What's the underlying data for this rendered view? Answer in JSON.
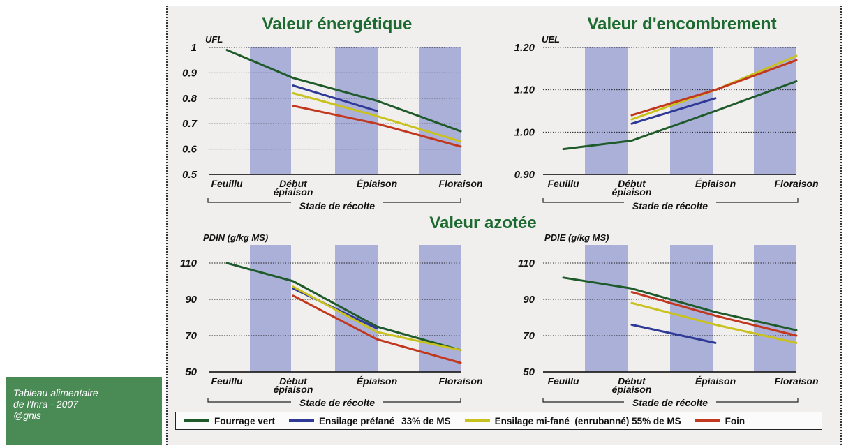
{
  "caption": {
    "lines": [
      "Tableau alimentaire",
      "de l'Inra - 2007",
      "@gnis"
    ]
  },
  "colors": {
    "fourrage_vert": "#1f5a2a",
    "ensilage_prefane": "#2f3a96",
    "ensilage_mi_fane": "#c9c21e",
    "foin": "#c2381f",
    "band": "#aab0d8",
    "title": "#1c6a30"
  },
  "section_titles": {
    "azotee": "Valeur azotée"
  },
  "legend": [
    {
      "label": "Fourrage vert",
      "extra": "",
      "color": "#1f5a2a"
    },
    {
      "label": "Ensilage préfané",
      "extra": "33% de MS",
      "color": "#2f3a96"
    },
    {
      "label": "Ensilage mi-fané  (enrubanné) 55% de MS",
      "extra": "",
      "color": "#c9c21e"
    },
    {
      "label": "Foin",
      "extra": "",
      "color": "#c2381f"
    }
  ],
  "chart_data": [
    {
      "type": "line",
      "title": "Valeur énergétique",
      "ylabel": "UFL",
      "xlabel": "Stade de récolte",
      "categories": [
        "Feuillu",
        "Début épiaison",
        "Épiaison",
        "Floraison"
      ],
      "yticks": [
        "1",
        "0.9",
        "0.8",
        "0.7",
        "0.6",
        "0.5"
      ],
      "ylim": [
        0.5,
        1.0
      ],
      "grid": true,
      "series": [
        {
          "name": "Fourrage vert",
          "color": "#1f5a2a",
          "points": [
            [
              0,
              0.99
            ],
            [
              1,
              0.88
            ],
            [
              2,
              0.79
            ],
            [
              3,
              0.67
            ]
          ]
        },
        {
          "name": "Ensilage préfané",
          "color": "#2f3a96",
          "points": [
            [
              1,
              0.85
            ],
            [
              2,
              0.75
            ]
          ]
        },
        {
          "name": "Ensilage mi-fané",
          "color": "#c9c21e",
          "points": [
            [
              1,
              0.82
            ],
            [
              2,
              0.73
            ],
            [
              3,
              0.63
            ]
          ]
        },
        {
          "name": "Foin",
          "color": "#c2381f",
          "points": [
            [
              1,
              0.77
            ],
            [
              2,
              0.7
            ],
            [
              3,
              0.61
            ]
          ]
        }
      ]
    },
    {
      "type": "line",
      "title": "Valeur d'encombrement",
      "ylabel": "UEL",
      "xlabel": "Stade de récolte",
      "categories": [
        "Feuillu",
        "Début épiaison",
        "Épiaison",
        "Floraison"
      ],
      "yticks": [
        "1.20",
        "1.10",
        "1.00",
        "0.90"
      ],
      "ylim": [
        0.9,
        1.2
      ],
      "grid": true,
      "series": [
        {
          "name": "Fourrage vert",
          "color": "#1f5a2a",
          "points": [
            [
              0,
              0.96
            ],
            [
              1,
              0.98
            ],
            [
              2,
              1.05
            ],
            [
              3,
              1.12
            ]
          ]
        },
        {
          "name": "Ensilage préfané",
          "color": "#2f3a96",
          "points": [
            [
              1,
              1.02
            ],
            [
              2,
              1.08
            ]
          ]
        },
        {
          "name": "Ensilage mi-fané",
          "color": "#c9c21e",
          "points": [
            [
              1,
              1.03
            ],
            [
              2,
              1.1
            ],
            [
              3,
              1.18
            ]
          ]
        },
        {
          "name": "Foin",
          "color": "#c2381f",
          "points": [
            [
              1,
              1.04
            ],
            [
              2,
              1.1
            ],
            [
              3,
              1.17
            ]
          ]
        }
      ]
    },
    {
      "type": "line",
      "title": "",
      "ylabel": "PDIN (g/kg MS)",
      "xlabel": "Stade de récolte",
      "categories": [
        "Feuillu",
        "Début épiaison",
        "Épiaison",
        "Floraison"
      ],
      "yticks": [
        "110",
        "90",
        "70",
        "50"
      ],
      "ylim": [
        50,
        120
      ],
      "grid": true,
      "series": [
        {
          "name": "Fourrage vert",
          "color": "#1f5a2a",
          "points": [
            [
              0,
              110
            ],
            [
              1,
              100
            ],
            [
              2,
              75
            ],
            [
              3,
              62
            ]
          ]
        },
        {
          "name": "Ensilage préfané",
          "color": "#2f3a96",
          "points": [
            [
              1,
              96
            ],
            [
              2,
              74
            ]
          ]
        },
        {
          "name": "Ensilage mi-fané",
          "color": "#c9c21e",
          "points": [
            [
              1,
              97
            ],
            [
              2,
              72
            ],
            [
              3,
              62
            ]
          ]
        },
        {
          "name": "Foin",
          "color": "#c2381f",
          "points": [
            [
              1,
              92
            ],
            [
              2,
              68
            ],
            [
              3,
              55
            ]
          ]
        }
      ]
    },
    {
      "type": "line",
      "title": "",
      "ylabel": "PDIE (g/kg MS)",
      "xlabel": "Stade de récolte",
      "categories": [
        "Feuillu",
        "Début épiaison",
        "Épiaison",
        "Floraison"
      ],
      "yticks": [
        "110",
        "90",
        "70",
        "50"
      ],
      "ylim": [
        50,
        120
      ],
      "grid": true,
      "series": [
        {
          "name": "Fourrage vert",
          "color": "#1f5a2a",
          "points": [
            [
              0,
              102
            ],
            [
              1,
              96
            ],
            [
              2,
              83
            ],
            [
              3,
              73
            ]
          ]
        },
        {
          "name": "Ensilage préfané",
          "color": "#2f3a96",
          "points": [
            [
              1,
              76
            ],
            [
              2,
              66
            ]
          ]
        },
        {
          "name": "Ensilage mi-fané",
          "color": "#c9c21e",
          "points": [
            [
              1,
              88
            ],
            [
              2,
              76
            ],
            [
              3,
              66
            ]
          ]
        },
        {
          "name": "Foin",
          "color": "#c2381f",
          "points": [
            [
              1,
              94
            ],
            [
              2,
              81
            ],
            [
              3,
              70
            ]
          ]
        }
      ]
    }
  ]
}
